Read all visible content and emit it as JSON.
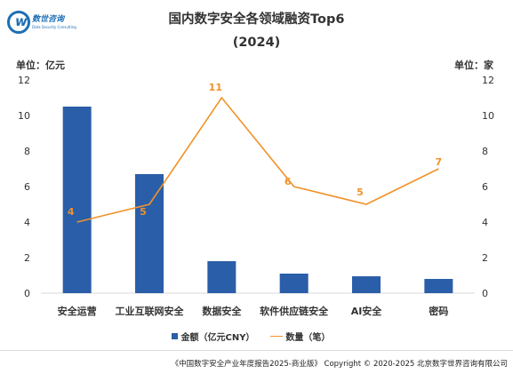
{
  "logo": {
    "chinese_name": "数世咨询",
    "english_name": "Data Security Consulting"
  },
  "header": {
    "title": "国内数字安全各领域融资Top6",
    "subtitle": "(2024)",
    "unit_left": "单位：亿元",
    "unit_right": "单位：家"
  },
  "legend": {
    "bar_label": "金额（亿元CNY）",
    "line_label": "数量（笔）"
  },
  "footer": {
    "text": "《中国数字安全产业年度报告2025-商业版》 Copyright © 2020-2025 北京数字世界咨询有限公司"
  },
  "colors": {
    "bar": "#2a5ea8",
    "line": "#f0922a",
    "line_label": "#f0922a"
  },
  "chart_data": {
    "type": "bar",
    "categories": [
      "安全运营",
      "工业互联网安全",
      "数据安全",
      "软件供应链安全",
      "AI安全",
      "密码"
    ],
    "series": [
      {
        "name": "金额（亿元CNY）",
        "type": "bar",
        "axis": "left",
        "values": [
          10.5,
          6.7,
          1.8,
          1.1,
          0.95,
          0.8
        ]
      },
      {
        "name": "数量（笔）",
        "type": "line",
        "axis": "right",
        "values": [
          4,
          5,
          11,
          6,
          5,
          7
        ]
      }
    ],
    "title": "国内数字安全各领域融资Top6",
    "subtitle": "(2024)",
    "ylabel_left": "单位：亿元",
    "ylabel_right": "单位：家",
    "ylim_left": [
      0,
      12
    ],
    "ylim_right": [
      0,
      12
    ],
    "yticks": [
      0,
      2,
      4,
      6,
      8,
      10,
      12
    ],
    "grid": false,
    "legend_position": "bottom"
  }
}
